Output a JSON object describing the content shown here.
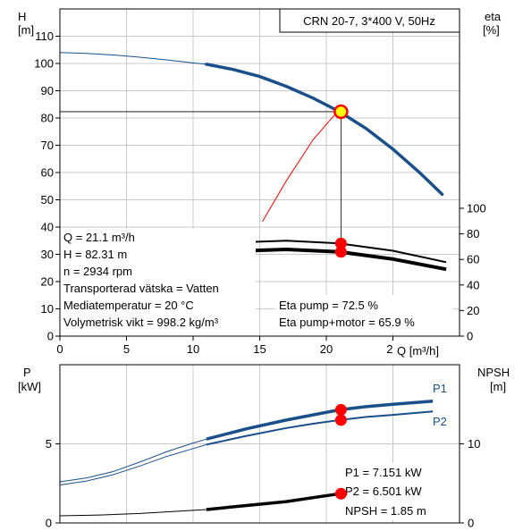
{
  "chart_data": [
    {
      "type": "line",
      "title": "CRN 20-7, 3*400 V, 50Hz",
      "x_axis": {
        "label": "Q [m³/h]",
        "range": [
          0,
          30
        ],
        "ticks": [
          "0",
          "5",
          "10",
          "15",
          "20",
          "25"
        ]
      },
      "y_left": {
        "label_top": "H",
        "label_unit": "[m]",
        "range": [
          0,
          120
        ],
        "ticks": [
          "0",
          "10",
          "20",
          "30",
          "40",
          "50",
          "60",
          "70",
          "80",
          "90",
          "100",
          "110"
        ]
      },
      "y_right": {
        "label_top": "eta",
        "label_unit": "[%]",
        "range": [
          0,
          100
        ],
        "ticks": [
          "0",
          "20",
          "40",
          "60",
          "80",
          "100"
        ]
      },
      "grid": true,
      "series": {
        "head_thin": {
          "x": [
            0,
            2,
            4,
            6,
            8,
            10,
            11
          ],
          "y": [
            104,
            103.7,
            103.1,
            102.3,
            101.3,
            100.2,
            99.7
          ]
        },
        "head_thick": {
          "x": [
            11,
            13,
            15,
            17,
            19,
            21,
            23,
            25,
            27,
            28.7
          ],
          "y": [
            99.7,
            97.8,
            95.2,
            91.6,
            87.3,
            82.3,
            76.1,
            68.6,
            60.0,
            52.0
          ]
        },
        "eta_pump": {
          "x": [
            11,
            14,
            17,
            21,
            25,
            29
          ],
          "y": [
            71,
            73.5,
            74.6,
            72.5,
            66.8,
            57.8
          ]
        },
        "eta_total": {
          "x": [
            11,
            14,
            17,
            21,
            25,
            29
          ],
          "y": [
            64,
            66.8,
            67.8,
            65.9,
            60.3,
            52.3
          ]
        },
        "red_curve": {
          "x": [
            15.2,
            17,
            19,
            20.6
          ],
          "y": [
            42,
            57,
            72,
            81
          ]
        }
      },
      "duty_point": {
        "x": 21.1,
        "y": 82.31
      },
      "eta_points": [
        72.5,
        65.9
      ],
      "info_left": [
        "Q = 21.1 m³/h",
        "H = 82.31 m",
        "n = 2934 rpm",
        "Transporterad vätska = Vatten",
        "Mediatemperatur = 20 °C",
        "Volymetrisk vikt = 998.2 kg/m³"
      ],
      "info_right": [
        "Eta pump = 72.5 %",
        "Eta pump+motor = 65.9 %"
      ],
      "colors": {
        "main": "#1a4f8a",
        "highlight": "#ff0000",
        "duty_fill": "#ffff00"
      }
    },
    {
      "type": "line",
      "x_axis": {
        "range": [
          0,
          30
        ]
      },
      "y_left": {
        "label_top": "P",
        "label_unit": "[kW]",
        "range": [
          0,
          10
        ],
        "ticks": [
          "0",
          "5"
        ]
      },
      "y_right": {
        "label_top": "NPSH",
        "label_unit": "[m]",
        "range": [
          0,
          20
        ],
        "ticks": [
          "0",
          "10"
        ]
      },
      "series": {
        "p1_thin": {
          "x": [
            0,
            2,
            4,
            6,
            8,
            10,
            11
          ],
          "y": [
            2.6,
            2.85,
            3.25,
            3.85,
            4.5,
            5.05,
            5.3
          ]
        },
        "p1_thick": {
          "x": [
            11,
            14,
            17,
            19,
            21,
            23,
            25,
            28
          ],
          "y": [
            5.3,
            5.95,
            6.5,
            6.83,
            7.151,
            7.35,
            7.5,
            7.7
          ]
        },
        "p2_thin": {
          "x": [
            0,
            2,
            4,
            6,
            8,
            10,
            11
          ],
          "y": [
            2.4,
            2.65,
            3.05,
            3.6,
            4.2,
            4.7,
            4.95
          ]
        },
        "p2_thick": {
          "x": [
            11,
            14,
            17,
            19,
            21,
            23,
            25,
            28
          ],
          "y": [
            4.95,
            5.5,
            6.0,
            6.27,
            6.501,
            6.7,
            6.83,
            7.05
          ]
        },
        "npsh_thin": {
          "x": [
            0,
            3,
            6,
            9,
            11
          ],
          "y": [
            0.45,
            0.5,
            0.6,
            0.75,
            0.85
          ]
        },
        "npsh_thick": {
          "x": [
            11,
            14,
            17,
            19,
            21,
            23.2
          ],
          "y": [
            0.85,
            1.1,
            1.35,
            1.6,
            1.85,
            2.15
          ]
        }
      },
      "series_labels": [
        "P1",
        "P2"
      ],
      "points": {
        "x": 21.1,
        "p1": 7.151,
        "p2": 6.501,
        "npsh": 1.85
      },
      "info_right": [
        "P1 = 7.151 kW",
        "P2 = 6.501 kW",
        "NPSH = 1.85 m"
      ]
    }
  ]
}
